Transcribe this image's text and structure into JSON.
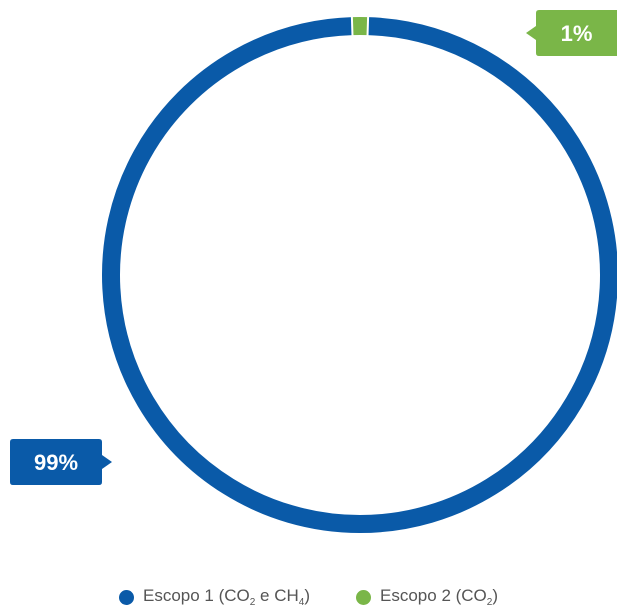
{
  "chart_data": {
    "type": "pie",
    "variant": "donut",
    "categories": [
      "Escopo 1 (CO2 e CH4)",
      "Escopo 2 (CO2)"
    ],
    "values": [
      99,
      1
    ],
    "data_labels": [
      "99%",
      "1%"
    ],
    "colors": [
      "#0a5aa8",
      "#7ab648"
    ],
    "legend_position": "bottom",
    "title": "",
    "legend": [
      {
        "label_parts": [
          {
            "t": "Escopo 1 (CO"
          },
          {
            "sub": "2"
          },
          {
            "t": " e CH"
          },
          {
            "sub": "4"
          },
          {
            "t": ")"
          }
        ],
        "color": "#0a5aa8"
      },
      {
        "label_parts": [
          {
            "t": "Escopo 2 (CO"
          },
          {
            "sub": "2"
          },
          {
            "t": ")"
          }
        ],
        "color": "#7ab648"
      }
    ]
  }
}
